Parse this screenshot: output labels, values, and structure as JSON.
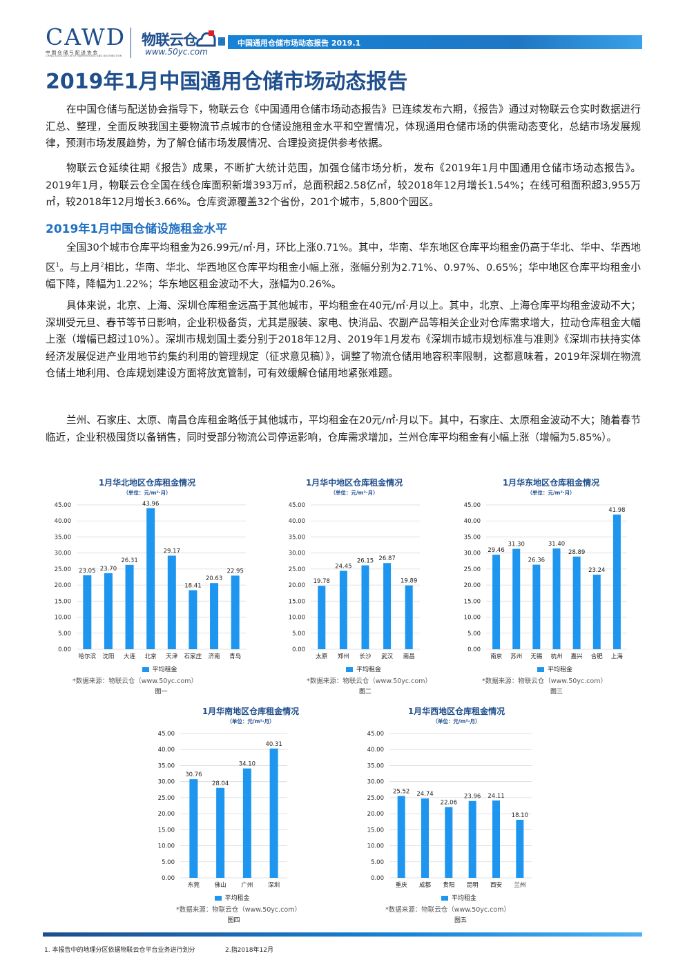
{
  "header": {
    "cawd": "CAWD",
    "cawd_sub": "中 国 仓 储 与 配 送 协 会",
    "cawd_sub_en": "CHINA ASSOCIATION OF WAREHOUSES AND DISTRIBUTION",
    "wulian": "物联云仓",
    "url": "www.50yc.com",
    "bar_text": "中国通用仓储市场动态报告 2019.1"
  },
  "title": "2019年1月中国通用仓储市场动态报告",
  "paragraphs": {
    "p1": "在中国仓储与配送协会指导下，物联云仓《中国通用仓储市场动态报告》已连续发布六期，《报告》通过对物联云仓实时数据进行汇总、整理，全面反映我国主要物流节点城市的仓储设施租金水平和空置情况，体现通用仓储市场的供需动态变化，总结市场发展规律，预测市场发展趋势，为了解仓储市场发展情况、合理投资提供参考依据。",
    "p2": "物联云仓延续往期《报告》成果，不断扩大统计范围，加强仓储市场分析，发布《2019年1月中国通用仓储市场动态报告》。2019年1月，物联云仓全国在线仓库面积新增393万㎡，总面积超2.58亿㎡，较2018年12月增长1.54%；在线可租面积超3,955万㎡，较2018年12月增长3.66%。仓库资源覆盖32个省份，201个城市，5,800个园区。",
    "p3a": "全国30个城市仓库平均租金为26.99元/㎡·月，环比上涨0.71%。其中，华南、华东地区仓库平均租金仍高于华北、华中、华西地区",
    "p3_sup1": "1",
    "p3b": "。与上月",
    "p3_sup2": "2",
    "p3c": "相比，华南、华北、华西地区仓库平均租金小幅上涨，涨幅分别为2.71%、0.97%、0.65%；华中地区仓库平均租金小幅下降，降幅为1.22%；华东地区租金波动不大，涨幅为0.26%。",
    "p4": "具体来说，北京、上海、深圳仓库租金远高于其他城市，平均租金在40元/㎡·月以上。其中，北京、上海仓库平均租金波动不大；深圳受元旦、春节等节日影响，企业积极备货，尤其是服装、家电、快消品、农副产品等相关企业对仓库需求增大，拉动仓库租金大幅上涨（增幅已超过10%）。深圳市规划国土委分别于2018年12月、2019年1月发布《深圳市城市规划标准与准则》《深圳市扶持实体经济发展促进产业用地节约集约利用的管理规定（征求意见稿）》，调整了物流仓储用地容积率限制，这都意味着，2019年深圳在物流仓储土地利用、仓库规划建设方面将放宽管制，可有效缓解仓储用地紧张难题。",
    "p5": "兰州、石家庄、太原、南昌仓库租金略低于其他城市，平均租金在20元/㎡·月以下。其中，石家庄、太原租金波动不大；随着春节临近，企业积极囤货以备销售，同时受部分物流公司停运影响，仓库需求增加，兰州仓库平均租金有小幅上涨（增幅为5.85%）。"
  },
  "section_title": "2019年1月中国仓储设施租金水平",
  "chart_common": {
    "unit": "（单位：元/m²·月）",
    "legend": "平均租金",
    "source": "*数据来源：物联云仓（www.50yc.com）",
    "bar_color": "#1e96f0",
    "yticks": [
      "45.00",
      "40.00",
      "35.00",
      "30.00",
      "25.00",
      "20.00",
      "15.00",
      "10.00",
      "5.00",
      "0.00"
    ]
  },
  "chart_data": [
    {
      "type": "bar",
      "title": "1月华北地区仓库租金情况",
      "caption": "图一",
      "ylim": [
        0,
        45
      ],
      "categories": [
        "哈尔滨",
        "沈阳",
        "大连",
        "北京",
        "天津",
        "石家庄",
        "济南",
        "青岛"
      ],
      "values": [
        23.05,
        23.7,
        26.31,
        43.96,
        29.17,
        18.41,
        20.63,
        22.95
      ],
      "labels": [
        "23.05",
        "23.70",
        "26.31",
        "43.96",
        "29.17",
        "18.41",
        "20.63",
        "22.95"
      ]
    },
    {
      "type": "bar",
      "title": "1月华中地区仓库租金情况",
      "caption": "图二",
      "ylim": [
        0,
        45
      ],
      "categories": [
        "太原",
        "郑州",
        "长沙",
        "武汉",
        "南昌"
      ],
      "values": [
        19.78,
        24.45,
        26.15,
        26.87,
        19.89
      ],
      "labels": [
        "19.78",
        "24.45",
        "26.15",
        "26.87",
        "19.89"
      ]
    },
    {
      "type": "bar",
      "title": "1月华东地区仓库租金情况",
      "caption": "图三",
      "ylim": [
        0,
        45
      ],
      "categories": [
        "南京",
        "苏州",
        "无锡",
        "杭州",
        "嘉兴",
        "合肥",
        "上海"
      ],
      "values": [
        29.46,
        31.3,
        26.36,
        31.4,
        28.89,
        23.24,
        41.98
      ],
      "labels": [
        "29.46",
        "31.30",
        "26.36",
        "31.40",
        "28.89",
        "23.24",
        "41.98"
      ]
    },
    {
      "type": "bar",
      "title": "1月华南地区仓库租金情况",
      "caption": "图四",
      "ylim": [
        0,
        45
      ],
      "categories": [
        "东莞",
        "佛山",
        "广州",
        "深圳"
      ],
      "values": [
        30.76,
        28.04,
        34.1,
        40.31
      ],
      "labels": [
        "30.76",
        "28.04",
        "34.10",
        "40.31"
      ]
    },
    {
      "type": "bar",
      "title": "1月华西地区仓库租金情况",
      "caption": "图五",
      "ylim": [
        0,
        45
      ],
      "categories": [
        "重庆",
        "成都",
        "贵阳",
        "昆明",
        "西安",
        "兰州"
      ],
      "values": [
        25.52,
        24.74,
        22.06,
        23.96,
        24.11,
        18.1
      ],
      "labels": [
        "25.52",
        "24.74",
        "22.06",
        "23.96",
        "24.11",
        "18.10"
      ]
    }
  ],
  "footnotes": {
    "f1": "1. 本报告中的地理分区依据物联云仓平台业务进行划分",
    "f2": "2.指2018年12月"
  }
}
